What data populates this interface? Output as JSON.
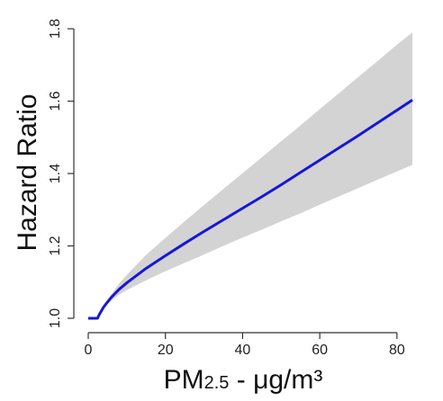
{
  "chart_data": {
    "type": "line",
    "xlabel": {
      "main": "PM",
      "sub": "2.5",
      "rest": " - μg/m³"
    },
    "ylabel": "Hazard Ratio",
    "xlim": [
      0,
      84
    ],
    "ylim": [
      1.0,
      1.8
    ],
    "x_ticks": [
      "0",
      "20",
      "40",
      "60",
      "80"
    ],
    "y_ticks": [
      "1.0",
      "1.2",
      "1.4",
      "1.6",
      "1.8"
    ],
    "grid": false,
    "colors": {
      "line": "#1616d8",
      "band": "#d3d3d3"
    },
    "series": [
      {
        "x": [
          0,
          2.4,
          3,
          4,
          5,
          6,
          8,
          10,
          15,
          20,
          25,
          30,
          35,
          40,
          45,
          50,
          55,
          60,
          65,
          70,
          75,
          80,
          84
        ],
        "y": [
          1.0,
          1.0,
          1.013,
          1.031,
          1.045,
          1.058,
          1.08,
          1.098,
          1.138,
          1.173,
          1.207,
          1.24,
          1.272,
          1.304,
          1.336,
          1.369,
          1.403,
          1.437,
          1.471,
          1.505,
          1.54,
          1.575,
          1.603
        ],
        "lower": [
          1.0,
          1.0,
          1.012,
          1.027,
          1.039,
          1.049,
          1.065,
          1.078,
          1.105,
          1.13,
          1.153,
          1.176,
          1.2,
          1.223,
          1.245,
          1.268,
          1.29,
          1.314,
          1.337,
          1.36,
          1.383,
          1.406,
          1.424
        ],
        "upper": [
          1.0,
          1.0,
          1.015,
          1.036,
          1.052,
          1.067,
          1.096,
          1.12,
          1.175,
          1.222,
          1.268,
          1.313,
          1.357,
          1.401,
          1.445,
          1.489,
          1.533,
          1.578,
          1.622,
          1.667,
          1.711,
          1.756,
          1.79
        ]
      }
    ]
  }
}
